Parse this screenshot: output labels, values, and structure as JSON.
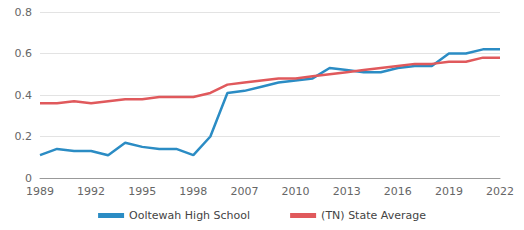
{
  "chart_data": {
    "type": "line",
    "categories": [
      "1989",
      null,
      null,
      "1992",
      null,
      null,
      "1995",
      null,
      null,
      "1998",
      null,
      null,
      "2007",
      null,
      null,
      "2010",
      null,
      null,
      "2013",
      null,
      null,
      "2016",
      null,
      null,
      "2019",
      null,
      null,
      "2022"
    ],
    "series": [
      {
        "name": "Ooltewah High School",
        "color": "#2b8cc4",
        "values": [
          0.11,
          0.14,
          0.13,
          0.13,
          0.11,
          0.17,
          0.15,
          0.14,
          0.14,
          0.11,
          0.2,
          0.41,
          0.42,
          0.44,
          0.46,
          0.47,
          0.48,
          0.53,
          0.52,
          0.51,
          0.51,
          0.53,
          0.54,
          0.54,
          0.6,
          0.6,
          0.62,
          0.62
        ]
      },
      {
        "name": "(TN) State Average",
        "color": "#e0595c",
        "values": [
          0.36,
          0.36,
          0.37,
          0.36,
          0.37,
          0.38,
          0.38,
          0.39,
          0.39,
          0.39,
          0.41,
          0.45,
          0.46,
          0.47,
          0.48,
          0.48,
          0.49,
          0.5,
          0.51,
          0.52,
          0.53,
          0.54,
          0.55,
          0.55,
          0.56,
          0.56,
          0.58,
          0.58
        ]
      }
    ],
    "ylim": [
      0,
      0.8
    ],
    "yticks": [
      0,
      0.2,
      0.4,
      0.6,
      0.8
    ],
    "grid": true,
    "legend": "bottom",
    "marker": "none"
  }
}
